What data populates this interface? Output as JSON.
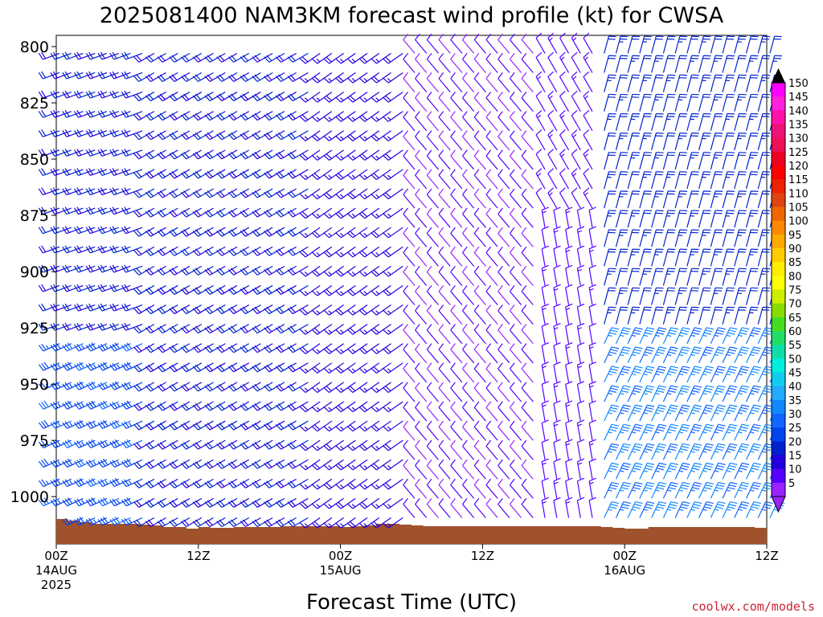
{
  "chart_data": {
    "type": "wind-barb-profile",
    "title": "2025081400 NAM3KM forecast wind profile (kt) for CWSA",
    "xlabel": "Forecast Time (UTC)",
    "ylabel": "",
    "credit": "coolwx.com/models",
    "x_ticks": [
      {
        "hour": 0,
        "lines": [
          "00Z",
          "14AUG",
          "2025"
        ]
      },
      {
        "hour": 12,
        "lines": [
          "12Z"
        ]
      },
      {
        "hour": 24,
        "lines": [
          "00Z",
          "15AUG"
        ]
      },
      {
        "hour": 36,
        "lines": [
          "12Z"
        ]
      },
      {
        "hour": 48,
        "lines": [
          "00Z",
          "16AUG"
        ]
      },
      {
        "hour": 60,
        "lines": [
          "12Z"
        ]
      }
    ],
    "xlim": [
      0,
      60
    ],
    "y_ticks": [
      800,
      825,
      850,
      875,
      900,
      925,
      950,
      975,
      1000
    ],
    "ylim": [
      803,
      1021
    ],
    "colorbar": {
      "units": "kt",
      "labels": [
        150,
        145,
        140,
        135,
        130,
        125,
        120,
        115,
        110,
        105,
        100,
        95,
        90,
        85,
        80,
        75,
        70,
        65,
        60,
        55,
        50,
        45,
        40,
        35,
        30,
        25,
        20,
        15,
        10,
        5
      ],
      "colors": [
        "#ff00ff",
        "#ff22dd",
        "#ff11aa",
        "#ee1177",
        "#ee1155",
        "#ee0022",
        "#ff0000",
        "#ee2200",
        "#dd4411",
        "#ee6600",
        "#ff8800",
        "#ffaa00",
        "#ffcc00",
        "#ffee00",
        "#ffff00",
        "#ccee00",
        "#88dd00",
        "#44dd22",
        "#22dd66",
        "#11ddaa",
        "#00eedd",
        "#11ccee",
        "#22aaff",
        "#1188ff",
        "#1166ff",
        "#0044ee",
        "#0022cc",
        "#2200dd",
        "#5500ff",
        "#9922ff"
      ]
    },
    "terrain_color": "#a0522d",
    "series": [
      {
        "hour_range": [
          0,
          8
        ],
        "direction_deg": 250,
        "speed_kt": 20,
        "low_level_direction_deg": 245,
        "low_level_speed_kt": 28
      },
      {
        "hour_range": [
          8,
          22
        ],
        "direction_deg": 240,
        "speed_kt": 20
      },
      {
        "hour_range": [
          22,
          30
        ],
        "direction_deg": 235,
        "speed_kt": 17
      },
      {
        "hour_range": [
          30,
          41
        ],
        "direction_deg": 320,
        "speed_kt": 10
      },
      {
        "hour_range": [
          41,
          46
        ],
        "direction_deg": 350,
        "speed_kt": 12,
        "upper_level_direction_deg": 330
      },
      {
        "hour_range": [
          46,
          61
        ],
        "direction_deg": 15,
        "speed_kt": 22,
        "low_level_direction_deg": 25,
        "low_level_speed_kt": 35
      }
    ]
  }
}
